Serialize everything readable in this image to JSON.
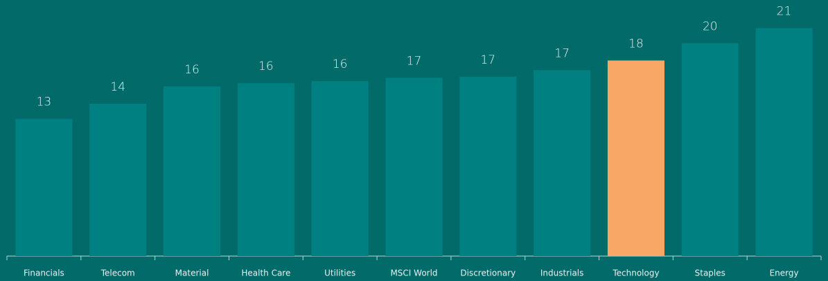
{
  "chart_data": {
    "type": "bar",
    "categories": [
      "Financials",
      "Telecom",
      "Material",
      "Health Care",
      "Utilities",
      "MSCI World",
      "Discretionary",
      "Industrials",
      "Technology",
      "Staples",
      "Energy"
    ],
    "values": [
      12.7,
      14.1,
      15.7,
      16.0,
      16.2,
      16.5,
      16.6,
      17.2,
      18.1,
      19.7,
      21.1
    ],
    "value_labels": [
      "13",
      "14",
      "16",
      "16",
      "16",
      "17",
      "17",
      "17",
      "18",
      "20",
      "21"
    ],
    "colors": [
      "#008080",
      "#008080",
      "#008080",
      "#008080",
      "#008080",
      "#008080",
      "#008080",
      "#008080",
      "#f8a766",
      "#008080",
      "#008080"
    ],
    "ylim": [
      0,
      23.7
    ]
  }
}
